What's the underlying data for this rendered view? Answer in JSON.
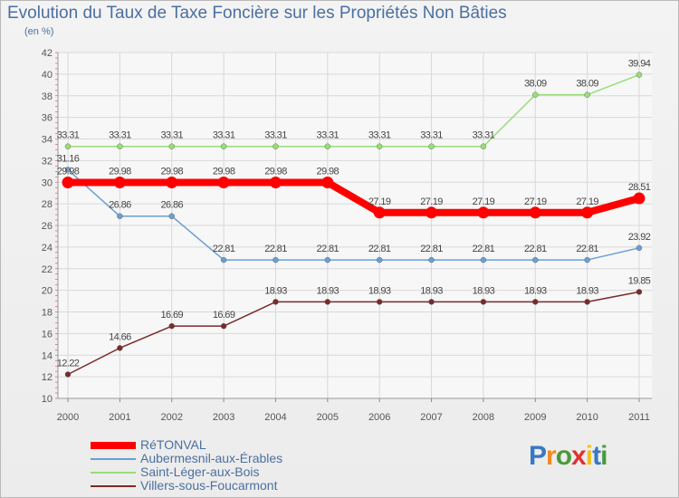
{
  "chart_data": {
    "type": "line",
    "title": "Evolution du Taux de Taxe Foncière sur les Propriétés Non Bâties",
    "ylabel": "(en %)",
    "xlabel": "",
    "x": [
      "2000",
      "2001",
      "2002",
      "2003",
      "2004",
      "2005",
      "2006",
      "2007",
      "2008",
      "2009",
      "2010",
      "2011"
    ],
    "ylim": [
      10,
      42
    ],
    "yticks": [
      10,
      12,
      14,
      16,
      18,
      20,
      22,
      24,
      26,
      28,
      30,
      32,
      34,
      36,
      38,
      40,
      42
    ],
    "grid": true,
    "legend_position": "bottom-left",
    "series": [
      {
        "name": "RéTONVAL",
        "color": "#ff0000",
        "width": 8,
        "values": [
          29.98,
          29.98,
          29.98,
          29.98,
          29.98,
          29.98,
          27.19,
          27.19,
          27.19,
          27.19,
          27.19,
          28.51
        ],
        "labels": [
          "29.98",
          "29.98",
          "29.98",
          "29.98",
          "29.98",
          "29.98",
          "27.19",
          "27.19",
          "27.19",
          "27.19",
          "27.19",
          "28.51"
        ]
      },
      {
        "name": "Aubermesnil-aux-Érables",
        "color": "#6a9fd4",
        "width": 1.5,
        "values": [
          31.16,
          26.86,
          26.86,
          22.81,
          22.81,
          22.81,
          22.81,
          22.81,
          22.81,
          22.81,
          22.81,
          23.92
        ],
        "labels": [
          "31.16",
          "26.86",
          "26.86",
          "22.81",
          "22.81",
          "22.81",
          "22.81",
          "22.81",
          "22.81",
          "22.81",
          "22.81",
          "23.92"
        ]
      },
      {
        "name": "Saint-Léger-aux-Bois",
        "color": "#99dd77",
        "width": 1.5,
        "values": [
          33.31,
          33.31,
          33.31,
          33.31,
          33.31,
          33.31,
          33.31,
          33.31,
          33.31,
          38.09,
          38.09,
          39.94
        ],
        "labels": [
          "33.31",
          "33.31",
          "33.31",
          "33.31",
          "33.31",
          "33.31",
          "33.31",
          "33.31",
          "33.31",
          "38.09",
          "38.09",
          "39.94"
        ]
      },
      {
        "name": "Villers-sous-Foucarmont",
        "color": "#7a2a2a",
        "width": 1.5,
        "values": [
          12.22,
          14.66,
          16.69,
          16.69,
          18.93,
          18.93,
          18.93,
          18.93,
          18.93,
          18.93,
          18.93,
          19.85
        ],
        "labels": [
          "12.22",
          "14.66",
          "16.69",
          "16.69",
          "18.93",
          "18.93",
          "18.93",
          "18.93",
          "18.93",
          "18.93",
          "18.93",
          "19.85"
        ]
      }
    ]
  },
  "logo": {
    "letters": [
      "P",
      "r",
      "o",
      "x",
      "i",
      "t",
      "i"
    ],
    "colors": [
      "#3a78c4",
      "#f08a1c",
      "#4a9a3a",
      "#e23030",
      "#f0c020",
      "#3a78c4",
      "#4a9a3a"
    ]
  }
}
